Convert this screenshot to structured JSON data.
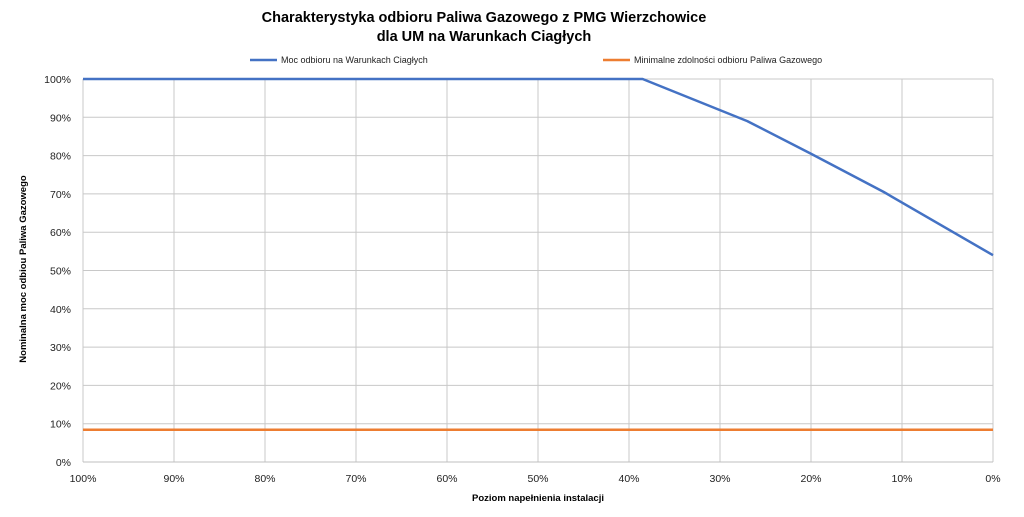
{
  "chart_data": {
    "type": "line",
    "title_line1": "Charakterystyka odbioru Paliwa Gazowego z PMG Wierzchowice",
    "title_line2": "dla UM na Warunkach Ciagłych",
    "xlabel": "Poziom napełnienia instalacji",
    "ylabel": "Nominalna moc odbiou Paliwa Gazowego",
    "x_ticks": [
      100,
      90,
      80,
      70,
      60,
      50,
      40,
      30,
      20,
      10,
      0
    ],
    "x_tick_labels": [
      "100%",
      "90%",
      "80%",
      "70%",
      "60%",
      "50%",
      "40%",
      "30%",
      "20%",
      "10%",
      "0%"
    ],
    "xlim": [
      100,
      0
    ],
    "y_ticks": [
      0,
      10,
      20,
      30,
      40,
      50,
      60,
      70,
      80,
      90,
      100
    ],
    "y_tick_labels": [
      "0%",
      "10%",
      "20%",
      "30%",
      "40%",
      "50%",
      "60%",
      "70%",
      "80%",
      "90%",
      "100%"
    ],
    "ylim": [
      0,
      100
    ],
    "grid": true,
    "legend_position": "top",
    "series": [
      {
        "name": "Moc odbioru na Warunkach Ciagłych",
        "color": "#4472c4",
        "x": [
          100,
          38.5,
          27,
          20,
          12,
          0
        ],
        "y": [
          100,
          100,
          89,
          80.5,
          70.5,
          54
        ]
      },
      {
        "name": "Minimalne zdolności odbioru Paliwa Gazowego",
        "color": "#ed7d31",
        "x": [
          100,
          0
        ],
        "y": [
          8.4,
          8.4
        ]
      }
    ]
  }
}
